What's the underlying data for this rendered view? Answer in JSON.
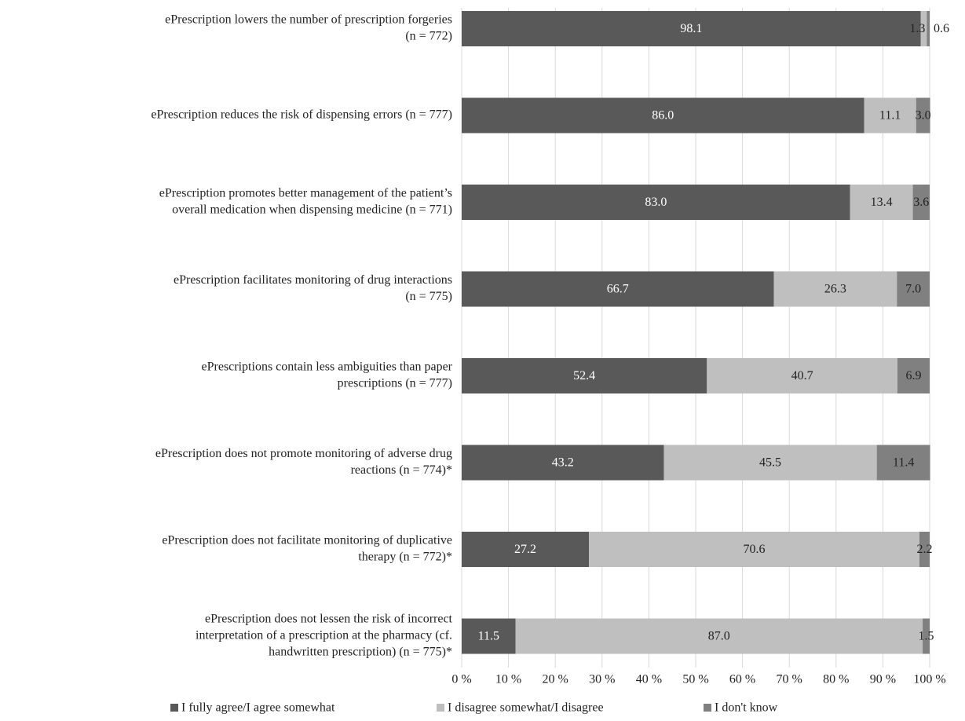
{
  "chart_data": {
    "type": "bar",
    "orientation": "horizontal",
    "stacked": true,
    "percent_stacked": true,
    "categories": [
      [
        "ePrescription lowers the number of prescription forgeries",
        "(n = 772)"
      ],
      [
        "ePrescription reduces the risk of dispensing errors (n = 777)"
      ],
      [
        "ePrescription promotes better management  of the patient’s",
        "overall medication  when dispensing medicine  (n = 771)"
      ],
      [
        "ePrescription facilitates monitoring of drug interactions",
        "(n = 775)"
      ],
      [
        "ePrescriptions contain less ambiguities than paper",
        "prescriptions (n = 777)"
      ],
      [
        "ePrescription does not promote monitoring of adverse drug",
        "reactions (n = 774)*"
      ],
      [
        "ePrescription does not facilitate monitoring of duplicative",
        "therapy (n = 772)*"
      ],
      [
        "ePrescription does not lessen the risk of incorrect",
        "interpretation of a prescription at the pharmacy (cf.",
        "handwritten prescription) (n = 775)*"
      ]
    ],
    "series": [
      {
        "name": "I fully agree/I agree somewhat",
        "color": "#595959",
        "label_color": "#ffffff",
        "values": [
          98.1,
          86.0,
          83.0,
          66.7,
          52.4,
          43.2,
          27.2,
          11.5
        ],
        "labels": [
          "98.1",
          "86.0",
          "83.0",
          "66.7",
          "52.4",
          "43.2",
          "27.2",
          "11.5"
        ]
      },
      {
        "name": "I disagree somewhat/I disagree",
        "color": "#bfbfbf",
        "label_color": "#222222",
        "values": [
          1.3,
          11.1,
          13.4,
          26.3,
          40.7,
          45.5,
          70.6,
          87.0
        ],
        "labels": [
          "1.3",
          "11.1",
          "13.4",
          "26.3",
          "40.7",
          "45.5",
          "70.6",
          "87.0"
        ]
      },
      {
        "name": "I don't know",
        "color": "#808080",
        "label_color": "#222222",
        "values": [
          0.6,
          3.0,
          3.6,
          7.0,
          6.9,
          11.4,
          2.2,
          1.5
        ],
        "labels": [
          "0.6",
          "3.0",
          "3.6",
          "7.0",
          "6.9",
          "11.4",
          "2.2",
          "1.5"
        ]
      }
    ],
    "x_ticks": [
      "0 %",
      "10 %",
      "20 %",
      "30 %",
      "40 %",
      "50 %",
      "60 %",
      "70 %",
      "80 %",
      "90 %",
      "100 %"
    ],
    "xlim": [
      0,
      100
    ],
    "grid": "vertical",
    "legend_position": "bottom",
    "title": "",
    "xlabel": "",
    "ylabel": ""
  }
}
